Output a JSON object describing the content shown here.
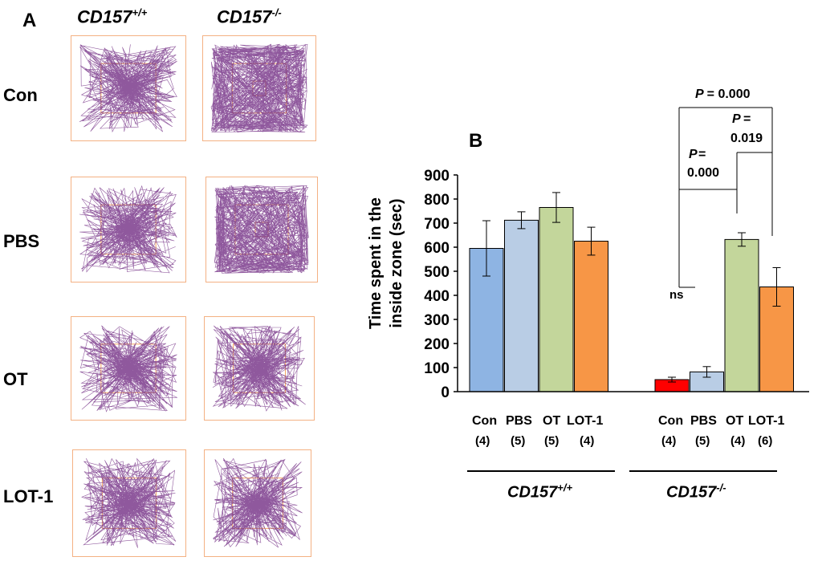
{
  "panel_a": {
    "letter": "A",
    "columns": [
      {
        "base": "CD157",
        "sup": "+/+"
      },
      {
        "base": "CD157",
        "sup": "-/-"
      }
    ],
    "rows": [
      "Con",
      "PBS",
      "OT",
      "LOT-1"
    ],
    "trace_color": "#7b3b8c",
    "zone_color": "#f4a460"
  },
  "chart_data": {
    "type": "bar",
    "panel_letter": "B",
    "ylabel_line1": "Time spent in the",
    "ylabel_line2": "inside zone (sec)",
    "ylim": [
      0,
      900
    ],
    "yticks": [
      "0",
      "100",
      "200",
      "300",
      "400",
      "500",
      "600",
      "700",
      "800",
      "900"
    ],
    "groups": [
      {
        "genotype_base": "CD157",
        "genotype_sup": "+/+",
        "bars": [
          {
            "label": "Con",
            "n": "(4)",
            "value": 595,
            "error": 115,
            "color": "#8eb4e3"
          },
          {
            "label": "PBS",
            "n": "(5)",
            "value": 712,
            "error": 35,
            "color": "#b9cde5"
          },
          {
            "label": "OT",
            "n": "(5)",
            "value": 765,
            "error": 62,
            "color": "#c3d69b"
          },
          {
            "label": "LOT-1",
            "n": "(4)",
            "value": 625,
            "error": 58,
            "color": "#f79646"
          }
        ]
      },
      {
        "genotype_base": "CD157",
        "genotype_sup": "-/-",
        "bars": [
          {
            "label": "Con",
            "n": "(4)",
            "value": 50,
            "error": 10,
            "color": "#ff0000"
          },
          {
            "label": "PBS",
            "n": "(5)",
            "value": 82,
            "error": 22,
            "color": "#b9cde5"
          },
          {
            "label": "OT",
            "n": "(4)",
            "value": 632,
            "error": 28,
            "color": "#c3d69b"
          },
          {
            "label": "LOT-1",
            "n": "(6)",
            "value": 435,
            "error": 80,
            "color": "#f79646"
          }
        ]
      }
    ],
    "annotations": {
      "ns": "ns",
      "p_con_ot": {
        "label": "P",
        "value": "= 0.000"
      },
      "p_ot_lot": {
        "label": "P",
        "value1": "=",
        "value2": "0.019"
      },
      "p_top": {
        "label": "P",
        "value": "= 0.000"
      }
    }
  }
}
